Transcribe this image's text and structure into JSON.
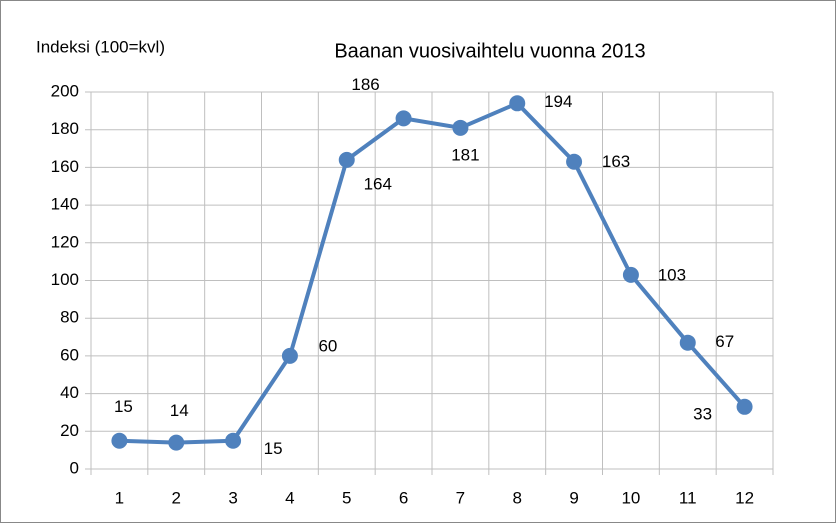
{
  "chart_data": {
    "type": "line",
    "title": "Baanan vuosivaihtelu vuonna 2013",
    "y_label": "Indeksi (100=kvl)",
    "categories": [
      "1",
      "2",
      "3",
      "4",
      "5",
      "6",
      "7",
      "8",
      "9",
      "10",
      "11",
      "12"
    ],
    "series": [
      {
        "color": "#4f81bd",
        "values": [
          15,
          14,
          15,
          60,
          164,
          186,
          181,
          194,
          163,
          103,
          67,
          33
        ]
      }
    ],
    "ylim": [
      0,
      200
    ],
    "yticks": [
      0,
      20,
      40,
      60,
      80,
      100,
      120,
      140,
      160,
      180,
      200
    ],
    "grid": true
  }
}
